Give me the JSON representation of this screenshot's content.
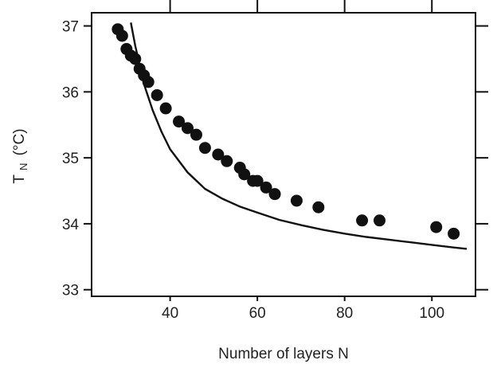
{
  "chart_data": {
    "type": "scatter",
    "xlabel": "Number of layers N",
    "ylabel_main": "T",
    "ylabel_sub": "N",
    "ylabel_unit": "(°C)",
    "xlim": [
      22,
      110
    ],
    "ylim": [
      32.9,
      37.2
    ],
    "x_ticks": [
      40,
      60,
      80,
      100
    ],
    "x_tick_labels": [
      "40",
      "60",
      "80",
      "100"
    ],
    "y_ticks": [
      33,
      34,
      35,
      36,
      37
    ],
    "y_tick_labels": [
      "33",
      "34",
      "35",
      "36",
      "37"
    ],
    "grid": false,
    "series": [
      {
        "kind": "points",
        "x": [
          28,
          29,
          30,
          31,
          32,
          33,
          34,
          35,
          37,
          39,
          42,
          44,
          46,
          48,
          51,
          53,
          56,
          57,
          59,
          60,
          62,
          64,
          69,
          74,
          84,
          88,
          101,
          105
        ],
        "y": [
          36.95,
          36.85,
          36.65,
          36.55,
          36.5,
          36.35,
          36.25,
          36.15,
          35.95,
          35.75,
          35.55,
          35.45,
          35.35,
          35.15,
          35.05,
          34.95,
          34.85,
          34.75,
          34.65,
          34.65,
          34.55,
          34.45,
          34.35,
          34.25,
          34.05,
          34.05,
          33.95,
          33.85
        ]
      },
      {
        "kind": "line",
        "x": [
          31,
          32,
          34,
          36,
          38,
          40,
          44,
          48,
          52,
          56,
          60,
          65,
          70,
          75,
          80,
          85,
          90,
          95,
          100,
          105,
          108
        ],
        "y": [
          37.05,
          36.7,
          36.12,
          35.72,
          35.4,
          35.13,
          34.78,
          34.53,
          34.38,
          34.26,
          34.17,
          34.06,
          33.98,
          33.91,
          33.85,
          33.8,
          33.76,
          33.72,
          33.68,
          33.64,
          33.62
        ]
      }
    ]
  }
}
